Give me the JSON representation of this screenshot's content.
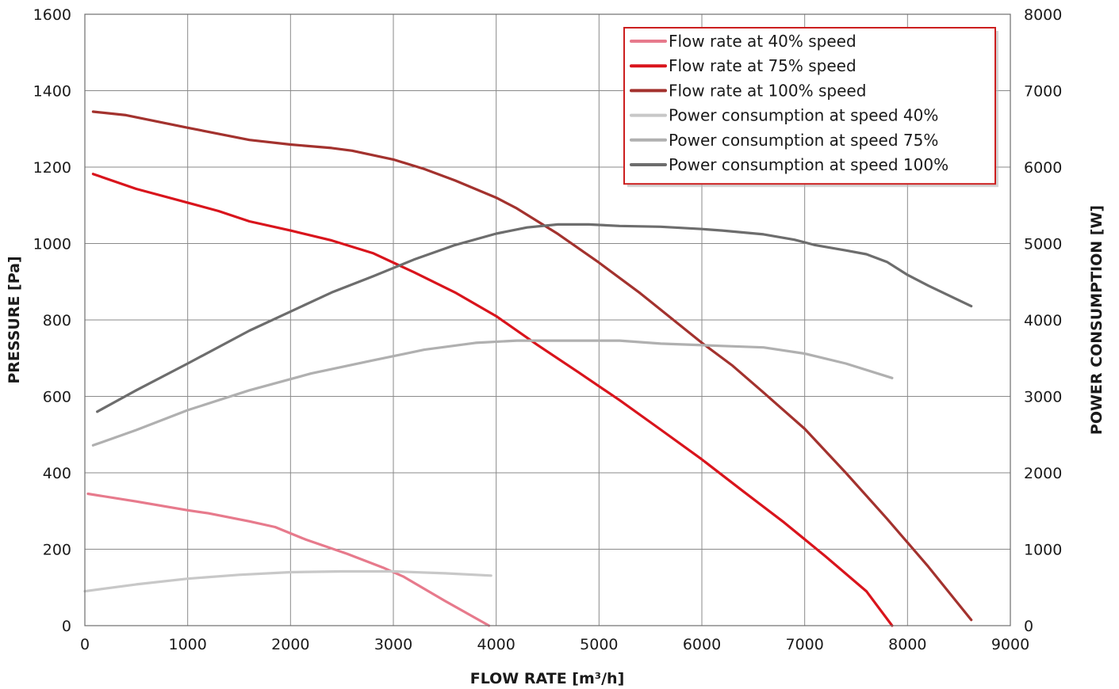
{
  "chart_data": {
    "type": "line",
    "xlabel": "FLOW RATE [m³/h]",
    "ylabel": "PRESSURE [Pa]",
    "y2label": "POWER CONSUMPTION [W]",
    "xlim": [
      0,
      9000
    ],
    "ylim": [
      0,
      1600
    ],
    "y2lim": [
      0,
      8000
    ],
    "xticks": [
      "0",
      "1000",
      "2000",
      "3000",
      "4000",
      "5000",
      "6000",
      "7000",
      "8000",
      "9000"
    ],
    "yticks": [
      "0",
      "200",
      "400",
      "600",
      "800",
      "1000",
      "1200",
      "1400",
      "1600"
    ],
    "y2ticks": [
      "0",
      "1000",
      "2000",
      "3000",
      "4000",
      "5000",
      "6000",
      "7000",
      "8000"
    ],
    "grid": true,
    "legend_position": "top-right",
    "legend_border_color": "#cc1f1f",
    "series": [
      {
        "name": "Flow rate at 40% speed",
        "axis": "left",
        "color": "#e77a8c",
        "x": [
          30,
          500,
          1000,
          1200,
          1600,
          1850,
          2150,
          2550,
          2900,
          3100,
          3500,
          3930
        ],
        "y": [
          345,
          325,
          302,
          294,
          273,
          258,
          225,
          188,
          152,
          128,
          65,
          0
        ]
      },
      {
        "name": "Flow rate at 75% speed",
        "axis": "left",
        "color": "#d9141c",
        "x": [
          80,
          500,
          1000,
          1300,
          1600,
          2000,
          2400,
          2800,
          3200,
          3600,
          4000,
          4400,
          4800,
          5200,
          5600,
          6000,
          6400,
          6800,
          7200,
          7600,
          7850
        ],
        "y": [
          1182,
          1143,
          1107,
          1085,
          1058,
          1034,
          1008,
          975,
          925,
          872,
          810,
          735,
          663,
          590,
          513,
          435,
          352,
          270,
          182,
          90,
          0
        ]
      },
      {
        "name": "Flow rate at 100% speed",
        "axis": "left",
        "color": "#a3322e",
        "x": [
          80,
          400,
          1000,
          1600,
          2000,
          2400,
          2600,
          3000,
          3300,
          3600,
          4000,
          4200,
          4600,
          5000,
          5400,
          6000,
          6300,
          6600,
          7000,
          7400,
          7800,
          8200,
          8620
        ],
        "y": [
          1345,
          1336,
          1303,
          1271,
          1259,
          1250,
          1243,
          1220,
          1195,
          1165,
          1120,
          1092,
          1025,
          950,
          870,
          740,
          680,
          610,
          515,
          400,
          280,
          155,
          15
        ]
      },
      {
        "name": "Power consumption at speed 40%",
        "axis": "right",
        "color": "#c8c8c8",
        "x": [
          0,
          500,
          1000,
          1500,
          2000,
          2500,
          3000,
          3500,
          3950
        ],
        "y": [
          450,
          540,
          615,
          665,
          700,
          710,
          710,
          685,
          655
        ]
      },
      {
        "name": "Power consumption at speed 75%",
        "axis": "right",
        "color": "#b0b0b0",
        "x": [
          80,
          500,
          1000,
          1600,
          2200,
          2800,
          3300,
          3800,
          4200,
          4600,
          5200,
          5600,
          6200,
          6600,
          7000,
          7400,
          7850
        ],
        "y": [
          2360,
          2560,
          2820,
          3080,
          3300,
          3470,
          3610,
          3700,
          3730,
          3730,
          3730,
          3690,
          3660,
          3640,
          3560,
          3430,
          3240
        ]
      },
      {
        "name": "Power consumption at speed 100%",
        "axis": "right",
        "color": "#6d6d6d",
        "x": [
          120,
          500,
          1000,
          1600,
          2000,
          2400,
          2800,
          3200,
          3600,
          4000,
          4300,
          4600,
          4900,
          5200,
          5600,
          6000,
          6200,
          6600,
          6900,
          7100,
          7400,
          7600,
          7800,
          8000,
          8200,
          8620
        ],
        "y": [
          2800,
          3080,
          3430,
          3860,
          4110,
          4360,
          4570,
          4790,
          4980,
          5130,
          5210,
          5250,
          5250,
          5230,
          5220,
          5190,
          5170,
          5120,
          5050,
          4980,
          4910,
          4860,
          4760,
          4590,
          4450,
          4180
        ]
      }
    ]
  }
}
